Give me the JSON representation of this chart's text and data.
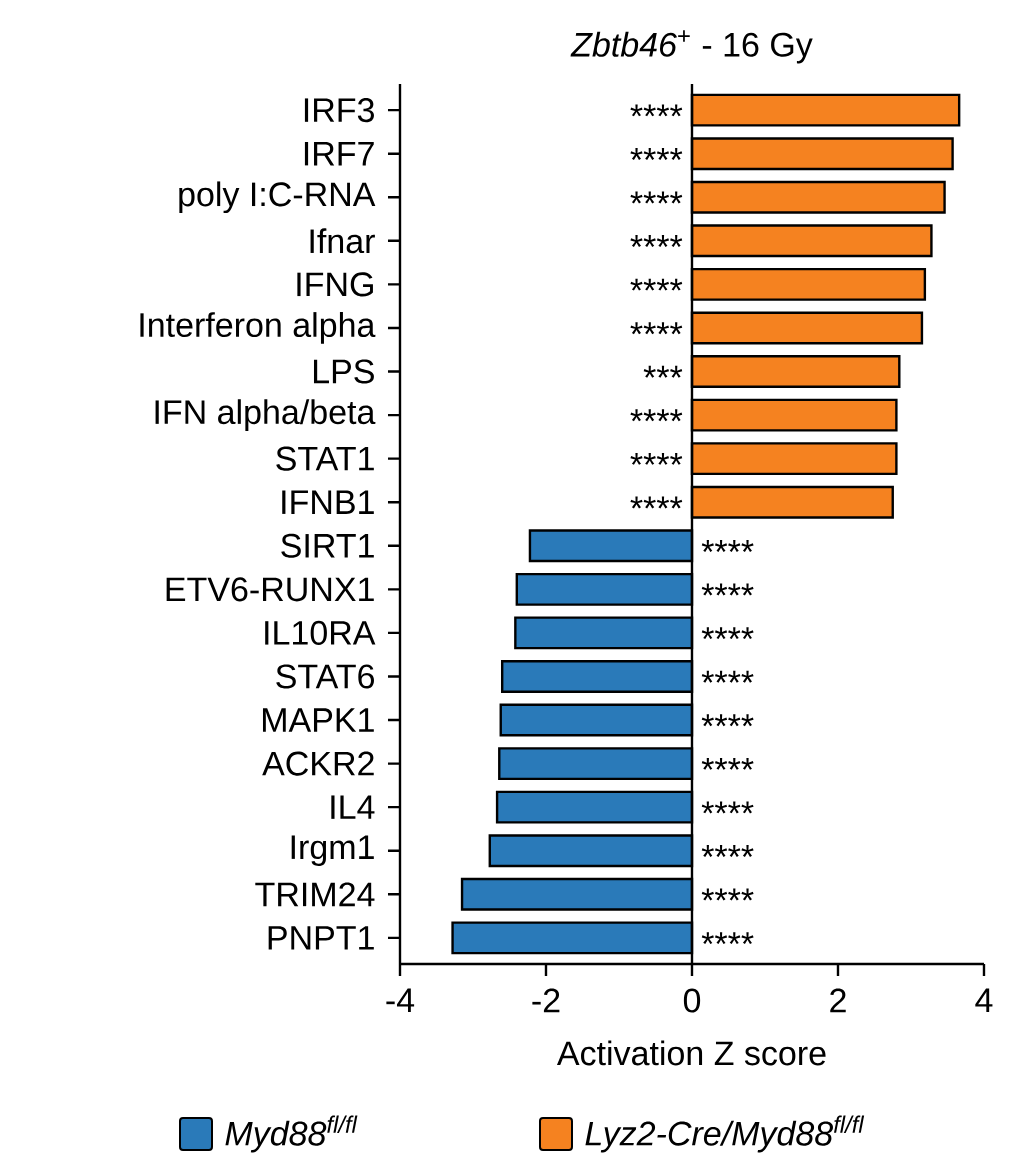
{
  "chart_data": {
    "type": "bar",
    "orientation": "horizontal",
    "title": "*Zbtb46*$^{+}$ - 16 Gy",
    "xlabel": "Activation Z score",
    "categories": [
      "IRF3",
      "IRF7",
      "poly I:C-RNA",
      "Ifnar",
      "IFNG",
      "Interferon alpha",
      "LPS",
      "IFN alpha/beta",
      "STAT1",
      "IFNB1",
      "SIRT1",
      "ETV6-RUNX1",
      "IL10RA",
      "STAT6",
      "MAPK1",
      "ACKR2",
      "IL4",
      "Irgm1",
      "TRIM24",
      "PNPT1"
    ],
    "series": [
      {
        "name": "*Myd88*$^{fl/fl}$",
        "color": "#2a7ab9",
        "values": [
          null,
          null,
          null,
          null,
          null,
          null,
          null,
          null,
          null,
          null,
          -2.22,
          -2.4,
          -2.42,
          -2.6,
          -2.62,
          -2.64,
          -2.67,
          -2.77,
          -3.15,
          -3.28
        ],
        "value_labels": [
          null,
          null,
          null,
          null,
          null,
          null,
          null,
          null,
          null,
          null,
          "****",
          "****",
          "****",
          "****",
          "****",
          "****",
          "****",
          "****",
          "****",
          "****"
        ]
      },
      {
        "name": "*Lyz2-Cre/Myd88*$^{fl/fl}$",
        "color": "#f58220",
        "values": [
          3.66,
          3.57,
          3.46,
          3.28,
          3.19,
          3.15,
          2.84,
          2.8,
          2.8,
          2.75,
          null,
          null,
          null,
          null,
          null,
          null,
          null,
          null,
          null,
          null
        ],
        "value_labels": [
          "****",
          "****",
          "****",
          "****",
          "****",
          "****",
          "***",
          "****",
          "****",
          "****",
          null,
          null,
          null,
          null,
          null,
          null,
          null,
          null,
          null,
          null
        ]
      }
    ],
    "xlim": [
      -4,
      4
    ],
    "xticks": [
      -4,
      -2,
      0,
      2,
      4
    ],
    "ref_lines": [
      {
        "axis": "x",
        "value": 0
      }
    ],
    "grid": false,
    "legend": "bottom"
  }
}
